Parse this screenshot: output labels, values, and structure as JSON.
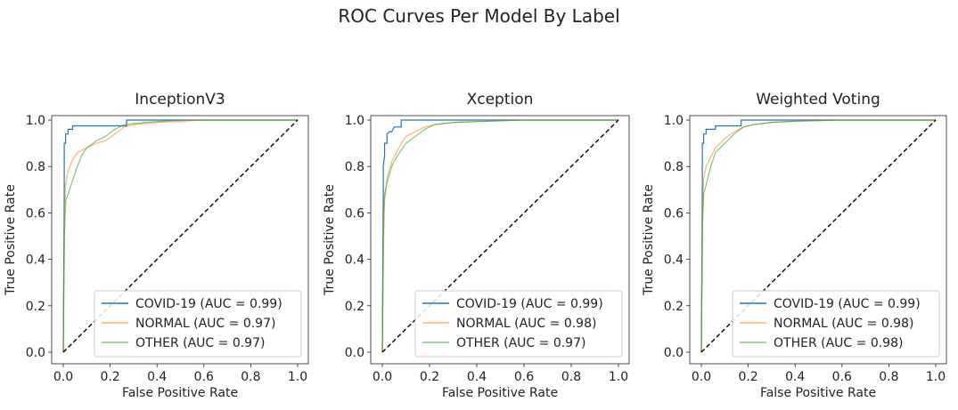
{
  "figure": {
    "title": "ROC Curves Per Model By Label"
  },
  "chart_data": [
    {
      "type": "line",
      "title": "InceptionV3",
      "xlabel": "False Positive Rate",
      "ylabel": "True Positive Rate",
      "xlim": [
        0,
        1
      ],
      "ylim": [
        0,
        1
      ],
      "xticks": [
        "0.0",
        "0.2",
        "0.4",
        "0.6",
        "0.8",
        "1.0"
      ],
      "yticks": [
        "0.0",
        "0.2",
        "0.4",
        "0.6",
        "0.8",
        "1.0"
      ],
      "legend": "lower-right",
      "series": [
        {
          "name": "COVID-19 (AUC = 0.99)",
          "color": "#1f77b4",
          "x": [
            0,
            0.004,
            0.004,
            0.01,
            0.01,
            0.02,
            0.02,
            0.04,
            0.04,
            0.12,
            0.27,
            0.27,
            1.0
          ],
          "y": [
            0,
            0.7,
            0.9,
            0.9,
            0.94,
            0.94,
            0.96,
            0.96,
            0.975,
            0.975,
            0.975,
            1.0,
            1.0
          ]
        },
        {
          "name": "NORMAL (AUC = 0.97)",
          "color": "#ff7f0e",
          "x": [
            0,
            0.005,
            0.01,
            0.02,
            0.04,
            0.06,
            0.1,
            0.14,
            0.18,
            0.22,
            0.26,
            0.3,
            0.4,
            0.6,
            1.0
          ],
          "y": [
            0,
            0.6,
            0.72,
            0.78,
            0.83,
            0.86,
            0.88,
            0.9,
            0.91,
            0.94,
            0.97,
            0.98,
            0.99,
            1.0,
            1.0
          ]
        },
        {
          "name": "OTHER (AUC = 0.97)",
          "color": "#2ca02c",
          "x": [
            0,
            0.005,
            0.01,
            0.02,
            0.04,
            0.06,
            0.08,
            0.1,
            0.14,
            0.18,
            0.22,
            0.26,
            0.35,
            0.5,
            1.0
          ],
          "y": [
            0,
            0.5,
            0.65,
            0.68,
            0.74,
            0.8,
            0.85,
            0.88,
            0.91,
            0.93,
            0.96,
            0.98,
            0.99,
            1.0,
            1.0
          ]
        }
      ]
    },
    {
      "type": "line",
      "title": "Xception",
      "xlabel": "False Positive Rate",
      "ylabel": "True Positive Rate",
      "xlim": [
        0,
        1
      ],
      "ylim": [
        0,
        1
      ],
      "xticks": [
        "0.0",
        "0.2",
        "0.4",
        "0.6",
        "0.8",
        "1.0"
      ],
      "yticks": [
        "0.0",
        "0.2",
        "0.4",
        "0.6",
        "0.8",
        "1.0"
      ],
      "legend": "lower-right",
      "series": [
        {
          "name": "COVID-19 (AUC = 0.99)",
          "color": "#1f77b4",
          "x": [
            0,
            0.004,
            0.004,
            0.01,
            0.01,
            0.02,
            0.02,
            0.03,
            0.04,
            0.05,
            0.08,
            0.08,
            1.0
          ],
          "y": [
            0,
            0.7,
            0.8,
            0.85,
            0.9,
            0.9,
            0.94,
            0.95,
            0.95,
            0.97,
            0.97,
            1.0,
            1.0
          ]
        },
        {
          "name": "NORMAL (AUC = 0.98)",
          "color": "#ff7f0e",
          "x": [
            0,
            0.005,
            0.01,
            0.02,
            0.04,
            0.06,
            0.08,
            0.1,
            0.14,
            0.18,
            0.22,
            0.3,
            0.45,
            0.6,
            1.0
          ],
          "y": [
            0,
            0.45,
            0.65,
            0.75,
            0.82,
            0.86,
            0.9,
            0.93,
            0.95,
            0.97,
            0.98,
            0.99,
            0.995,
            1.0,
            1.0
          ]
        },
        {
          "name": "OTHER (AUC = 0.97)",
          "color": "#2ca02c",
          "x": [
            0,
            0.005,
            0.01,
            0.02,
            0.04,
            0.06,
            0.08,
            0.1,
            0.14,
            0.18,
            0.22,
            0.3,
            0.45,
            0.6,
            1.0
          ],
          "y": [
            0,
            0.6,
            0.68,
            0.73,
            0.8,
            0.84,
            0.87,
            0.9,
            0.93,
            0.96,
            0.98,
            0.99,
            0.995,
            1.0,
            1.0
          ]
        }
      ]
    },
    {
      "type": "line",
      "title": "Weighted Voting",
      "xlabel": "False Positive Rate",
      "ylabel": "True Positive Rate",
      "xlim": [
        0,
        1
      ],
      "ylim": [
        0,
        1
      ],
      "xticks": [
        "0.0",
        "0.2",
        "0.4",
        "0.6",
        "0.8",
        "1.0"
      ],
      "yticks": [
        "0.0",
        "0.2",
        "0.4",
        "0.6",
        "0.8",
        "1.0"
      ],
      "legend": "lower-right",
      "series": [
        {
          "name": "COVID-19 (AUC = 0.99)",
          "color": "#1f77b4",
          "x": [
            0,
            0.004,
            0.004,
            0.01,
            0.01,
            0.02,
            0.02,
            0.06,
            0.06,
            0.17,
            0.17,
            1.0
          ],
          "y": [
            0,
            0.7,
            0.9,
            0.9,
            0.94,
            0.94,
            0.96,
            0.96,
            0.975,
            0.975,
            1.0,
            1.0
          ]
        },
        {
          "name": "NORMAL (AUC = 0.98)",
          "color": "#ff7f0e",
          "x": [
            0,
            0.005,
            0.01,
            0.02,
            0.04,
            0.06,
            0.08,
            0.1,
            0.14,
            0.18,
            0.22,
            0.3,
            0.4,
            0.6,
            1.0
          ],
          "y": [
            0,
            0.6,
            0.75,
            0.8,
            0.84,
            0.88,
            0.9,
            0.92,
            0.95,
            0.97,
            0.98,
            0.99,
            0.995,
            1.0,
            1.0
          ]
        },
        {
          "name": "OTHER (AUC = 0.98)",
          "color": "#2ca02c",
          "x": [
            0,
            0.005,
            0.01,
            0.02,
            0.04,
            0.06,
            0.08,
            0.1,
            0.14,
            0.18,
            0.22,
            0.3,
            0.4,
            0.6,
            1.0
          ],
          "y": [
            0,
            0.55,
            0.68,
            0.72,
            0.8,
            0.86,
            0.88,
            0.9,
            0.94,
            0.97,
            0.98,
            0.99,
            0.995,
            1.0,
            1.0
          ]
        }
      ]
    }
  ]
}
